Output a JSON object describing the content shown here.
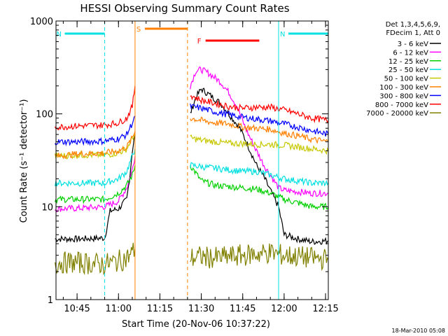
{
  "chart_data": {
    "type": "line",
    "title": "HESSI Observing Summary Count Rates",
    "xlabel": "Start Time (20-Nov-06 10:37:22)",
    "ylabel": "Count Rate (s⁻¹ detector⁻¹)",
    "yscale": "log",
    "ylim": [
      1,
      1000
    ],
    "xlim": [
      "10:37:22",
      "12:16"
    ],
    "x_ticks": [
      "10:45",
      "11:00",
      "11:15",
      "11:30",
      "11:45",
      "12:00",
      "12:15"
    ],
    "y_ticks": [
      "1",
      "10",
      "100",
      "1000"
    ],
    "timestamp": "18-Mar-2010 05:08",
    "legend": {
      "placement": "right",
      "header": [
        "Det 1,3,4,5,6,9,",
        "FDecim 1, Att 0"
      ]
    },
    "flags": [
      {
        "label": "N",
        "color": "#00e0e0",
        "start": "10:37",
        "end": "10:55"
      },
      {
        "label": "N",
        "color": "#00e0e0",
        "start": "11:58",
        "end": "12:16"
      },
      {
        "label": "S",
        "color": "#ff8000",
        "start": "11:06",
        "end": "11:25"
      },
      {
        "label": "F",
        "color": "#ff0000",
        "start": "11:28",
        "end": "11:51"
      }
    ],
    "boundaries": [
      {
        "time": "10:55",
        "color": "#00e0e0",
        "style": "dashed"
      },
      {
        "time": "11:06",
        "color": "#ff8000",
        "style": "solid"
      },
      {
        "time": "11:25",
        "color": "#ff8000",
        "style": "dashed"
      },
      {
        "time": "11:58",
        "color": "#00e0e0",
        "style": "solid"
      },
      {
        "time": "12:16",
        "color": "#00e0e0",
        "style": "dashed"
      }
    ],
    "series": [
      {
        "name": "3 - 6 keV",
        "color": "#000000",
        "segments": [
          [
            [
              "10:37",
              4.5
            ],
            [
              "10:45",
              4.5
            ],
            [
              "10:55",
              4.6
            ],
            [
              "10:57",
              9
            ],
            [
              "11:00",
              9.5
            ],
            [
              "11:03",
              12
            ],
            [
              "11:04",
              20
            ],
            [
              "11:05",
              40
            ],
            [
              "11:06",
              60
            ]
          ],
          [
            [
              "11:26",
              100
            ],
            [
              "11:28",
              150
            ],
            [
              "11:30",
              185
            ],
            [
              "11:33",
              160
            ],
            [
              "11:37",
              130
            ],
            [
              "11:40",
              100
            ],
            [
              "11:44",
              70
            ],
            [
              "11:47",
              45
            ],
            [
              "11:50",
              28
            ],
            [
              "11:53",
              20
            ],
            [
              "11:55",
              15
            ],
            [
              "11:58",
              10
            ],
            [
              "12:00",
              5
            ],
            [
              "12:05",
              4.5
            ],
            [
              "12:10",
              4.2
            ],
            [
              "12:16",
              4.3
            ]
          ]
        ]
      },
      {
        "name": "6 - 12 keV",
        "color": "#ff00ff",
        "segments": [
          [
            [
              "10:37",
              9.5
            ],
            [
              "10:45",
              9.6
            ],
            [
              "10:55",
              10
            ],
            [
              "11:00",
              11.5
            ],
            [
              "11:03",
              16
            ],
            [
              "11:05",
              25
            ],
            [
              "11:06",
              35
            ]
          ],
          [
            [
              "11:26",
              200
            ],
            [
              "11:28",
              290
            ],
            [
              "11:30",
              300
            ],
            [
              "11:33",
              270
            ],
            [
              "11:37",
              220
            ],
            [
              "11:40",
              170
            ],
            [
              "11:43",
              120
            ],
            [
              "11:46",
              70
            ],
            [
              "11:50",
              40
            ],
            [
              "11:53",
              27
            ],
            [
              "11:55",
              22
            ],
            [
              "11:58",
              16
            ],
            [
              "12:00",
              15
            ],
            [
              "12:05",
              14.5
            ],
            [
              "12:10",
              14
            ],
            [
              "12:16",
              14
            ]
          ]
        ]
      },
      {
        "name": "12 - 25 keV",
        "color": "#00d000",
        "segments": [
          [
            [
              "10:37",
              12
            ],
            [
              "10:45",
              12
            ],
            [
              "10:55",
              12
            ],
            [
              "11:00",
              14
            ],
            [
              "11:03",
              17
            ],
            [
              "11:05",
              22
            ],
            [
              "11:06",
              28
            ]
          ],
          [
            [
              "11:26",
              28
            ],
            [
              "11:30",
              19
            ],
            [
              "11:35",
              17
            ],
            [
              "11:40",
              16.5
            ],
            [
              "11:45",
              16
            ],
            [
              "11:50",
              15.5
            ],
            [
              "11:55",
              14
            ],
            [
              "12:00",
              12
            ],
            [
              "12:05",
              11
            ],
            [
              "12:10",
              10
            ],
            [
              "12:16",
              10
            ]
          ]
        ]
      },
      {
        "name": "25 - 50 keV",
        "color": "#00e0e0",
        "segments": [
          [
            [
              "10:37",
              18
            ],
            [
              "10:45",
              18
            ],
            [
              "10:55",
              18
            ],
            [
              "11:00",
              20
            ],
            [
              "11:03",
              24
            ],
            [
              "11:05",
              35
            ],
            [
              "11:06",
              42
            ]
          ],
          [
            [
              "11:26",
              28
            ],
            [
              "11:30",
              27
            ],
            [
              "11:35",
              26
            ],
            [
              "11:40",
              25
            ],
            [
              "11:45",
              24
            ],
            [
              "11:50",
              24
            ],
            [
              "11:55",
              22
            ],
            [
              "12:00",
              20
            ],
            [
              "12:05",
              19
            ],
            [
              "12:10",
              18
            ],
            [
              "12:16",
              18
            ]
          ]
        ]
      },
      {
        "name": "50 - 100 keV",
        "color": "#c8c800",
        "segments": [
          [
            [
              "10:37",
              35
            ],
            [
              "10:45",
              36
            ],
            [
              "10:55",
              36
            ],
            [
              "11:00",
              38
            ],
            [
              "11:03",
              42
            ],
            [
              "11:05",
              55
            ],
            [
              "11:06",
              60
            ]
          ],
          [
            [
              "11:26",
              55
            ],
            [
              "11:30",
              52
            ],
            [
              "11:35",
              50
            ],
            [
              "11:40",
              48
            ],
            [
              "11:45",
              48
            ],
            [
              "11:50",
              47
            ],
            [
              "11:55",
              47
            ],
            [
              "12:00",
              46
            ],
            [
              "12:05",
              44
            ],
            [
              "12:10",
              42
            ],
            [
              "12:16",
              40
            ]
          ]
        ]
      },
      {
        "name": "100 - 300 keV",
        "color": "#ff8000",
        "segments": [
          [
            [
              "10:37",
              35
            ],
            [
              "10:45",
              37
            ],
            [
              "10:55",
              38
            ],
            [
              "11:00",
              40
            ],
            [
              "11:03",
              44
            ],
            [
              "11:05",
              55
            ],
            [
              "11:06",
              65
            ]
          ],
          [
            [
              "11:26",
              90
            ],
            [
              "11:30",
              85
            ],
            [
              "11:35",
              80
            ],
            [
              "11:40",
              78
            ],
            [
              "11:45",
              72
            ],
            [
              "11:50",
              70
            ],
            [
              "11:55",
              68
            ],
            [
              "12:00",
              62
            ],
            [
              "12:05",
              58
            ],
            [
              "12:10",
              53
            ],
            [
              "12:16",
              50
            ]
          ]
        ]
      },
      {
        "name": "300 - 800 keV",
        "color": "#0000ff",
        "segments": [
          [
            [
              "10:37",
              50
            ],
            [
              "10:45",
              50
            ],
            [
              "10:55",
              51
            ],
            [
              "11:00",
              54
            ],
            [
              "11:03",
              60
            ],
            [
              "11:05",
              80
            ],
            [
              "11:06",
              95
            ]
          ],
          [
            [
              "11:26",
              120
            ],
            [
              "11:30",
              115
            ],
            [
              "11:35",
              105
            ],
            [
              "11:40",
              98
            ],
            [
              "11:45",
              92
            ],
            [
              "11:50",
              88
            ],
            [
              "11:55",
              84
            ],
            [
              "12:00",
              78
            ],
            [
              "12:05",
              72
            ],
            [
              "12:10",
              66
            ],
            [
              "12:16",
              60
            ]
          ]
        ]
      },
      {
        "name": "800 - 7000 keV",
        "color": "#ff0000",
        "segments": [
          [
            [
              "10:37",
              72
            ],
            [
              "10:45",
              74
            ],
            [
              "10:55",
              76
            ],
            [
              "11:00",
              80
            ],
            [
              "11:03",
              90
            ],
            [
              "11:05",
              120
            ],
            [
              "11:06",
              200
            ]
          ],
          [
            [
              "11:26",
              160
            ],
            [
              "11:30",
              140
            ],
            [
              "11:35",
              130
            ],
            [
              "11:40",
              120
            ],
            [
              "11:45",
              115
            ],
            [
              "11:50",
              118
            ],
            [
              "11:55",
              118
            ],
            [
              "12:00",
              110
            ],
            [
              "12:05",
              100
            ],
            [
              "12:10",
              90
            ],
            [
              "12:16",
              85
            ]
          ]
        ]
      },
      {
        "name": "7000 - 20000 keV",
        "color": "#808000",
        "segments": [
          [
            [
              "10:37",
              2.5
            ],
            [
              "10:45",
              2.5
            ],
            [
              "10:55",
              2.4
            ],
            [
              "11:00",
              2.6
            ],
            [
              "11:03",
              2.8
            ],
            [
              "11:05",
              3.2
            ],
            [
              "11:06",
              3.5
            ]
          ],
          [
            [
              "11:26",
              2.8
            ],
            [
              "11:30",
              2.9
            ],
            [
              "11:35",
              2.8
            ],
            [
              "11:40",
              2.9
            ],
            [
              "11:45",
              3.0
            ],
            [
              "11:50",
              3.1
            ],
            [
              "11:55",
              3.2
            ],
            [
              "12:00",
              3.0
            ],
            [
              "12:05",
              2.9
            ],
            [
              "12:10",
              2.8
            ],
            [
              "12:16",
              2.7
            ]
          ]
        ]
      }
    ]
  }
}
